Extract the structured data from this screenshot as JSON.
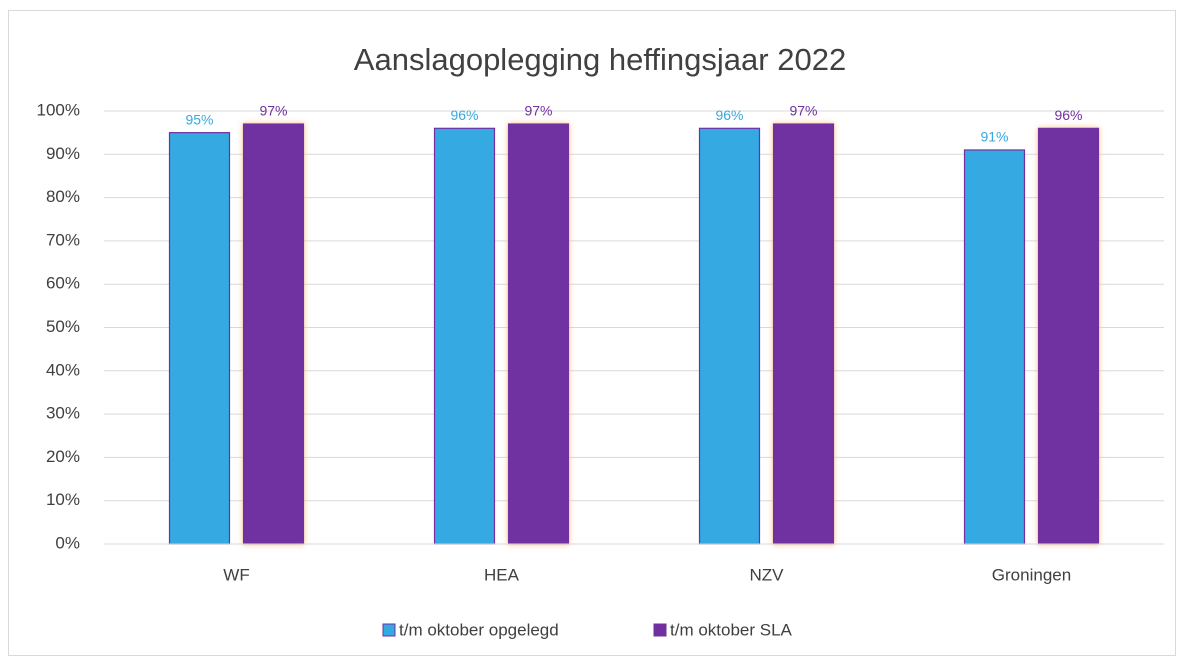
{
  "chart_data": {
    "type": "bar",
    "title": "Aanslagoplegging heffingsjaar 2022",
    "categories": [
      "WF",
      "HEA",
      "NZV",
      "Groningen"
    ],
    "series": [
      {
        "name": "t/m oktober opgelegd",
        "color": "#35a9e1",
        "values": [
          95,
          96,
          96,
          91
        ],
        "value_labels": [
          "95%",
          "96%",
          "96%",
          "91%"
        ]
      },
      {
        "name": "t/m oktober SLA",
        "color": "#7030a0",
        "values": [
          97,
          97,
          97,
          96
        ],
        "value_labels": [
          "97%",
          "97%",
          "97%",
          "96%"
        ]
      }
    ],
    "ylim": [
      0,
      100
    ],
    "yticks": [
      {
        "value": 0,
        "label": "0%"
      },
      {
        "value": 10,
        "label": "10%"
      },
      {
        "value": 20,
        "label": "20%"
      },
      {
        "value": 30,
        "label": "30%"
      },
      {
        "value": 40,
        "label": "40%"
      },
      {
        "value": 50,
        "label": "50%"
      },
      {
        "value": 60,
        "label": "60%"
      },
      {
        "value": 70,
        "label": "70%"
      },
      {
        "value": 80,
        "label": "80%"
      },
      {
        "value": 90,
        "label": "90%"
      },
      {
        "value": 100,
        "label": "100%"
      }
    ],
    "grid": true,
    "legend": "bottom"
  }
}
